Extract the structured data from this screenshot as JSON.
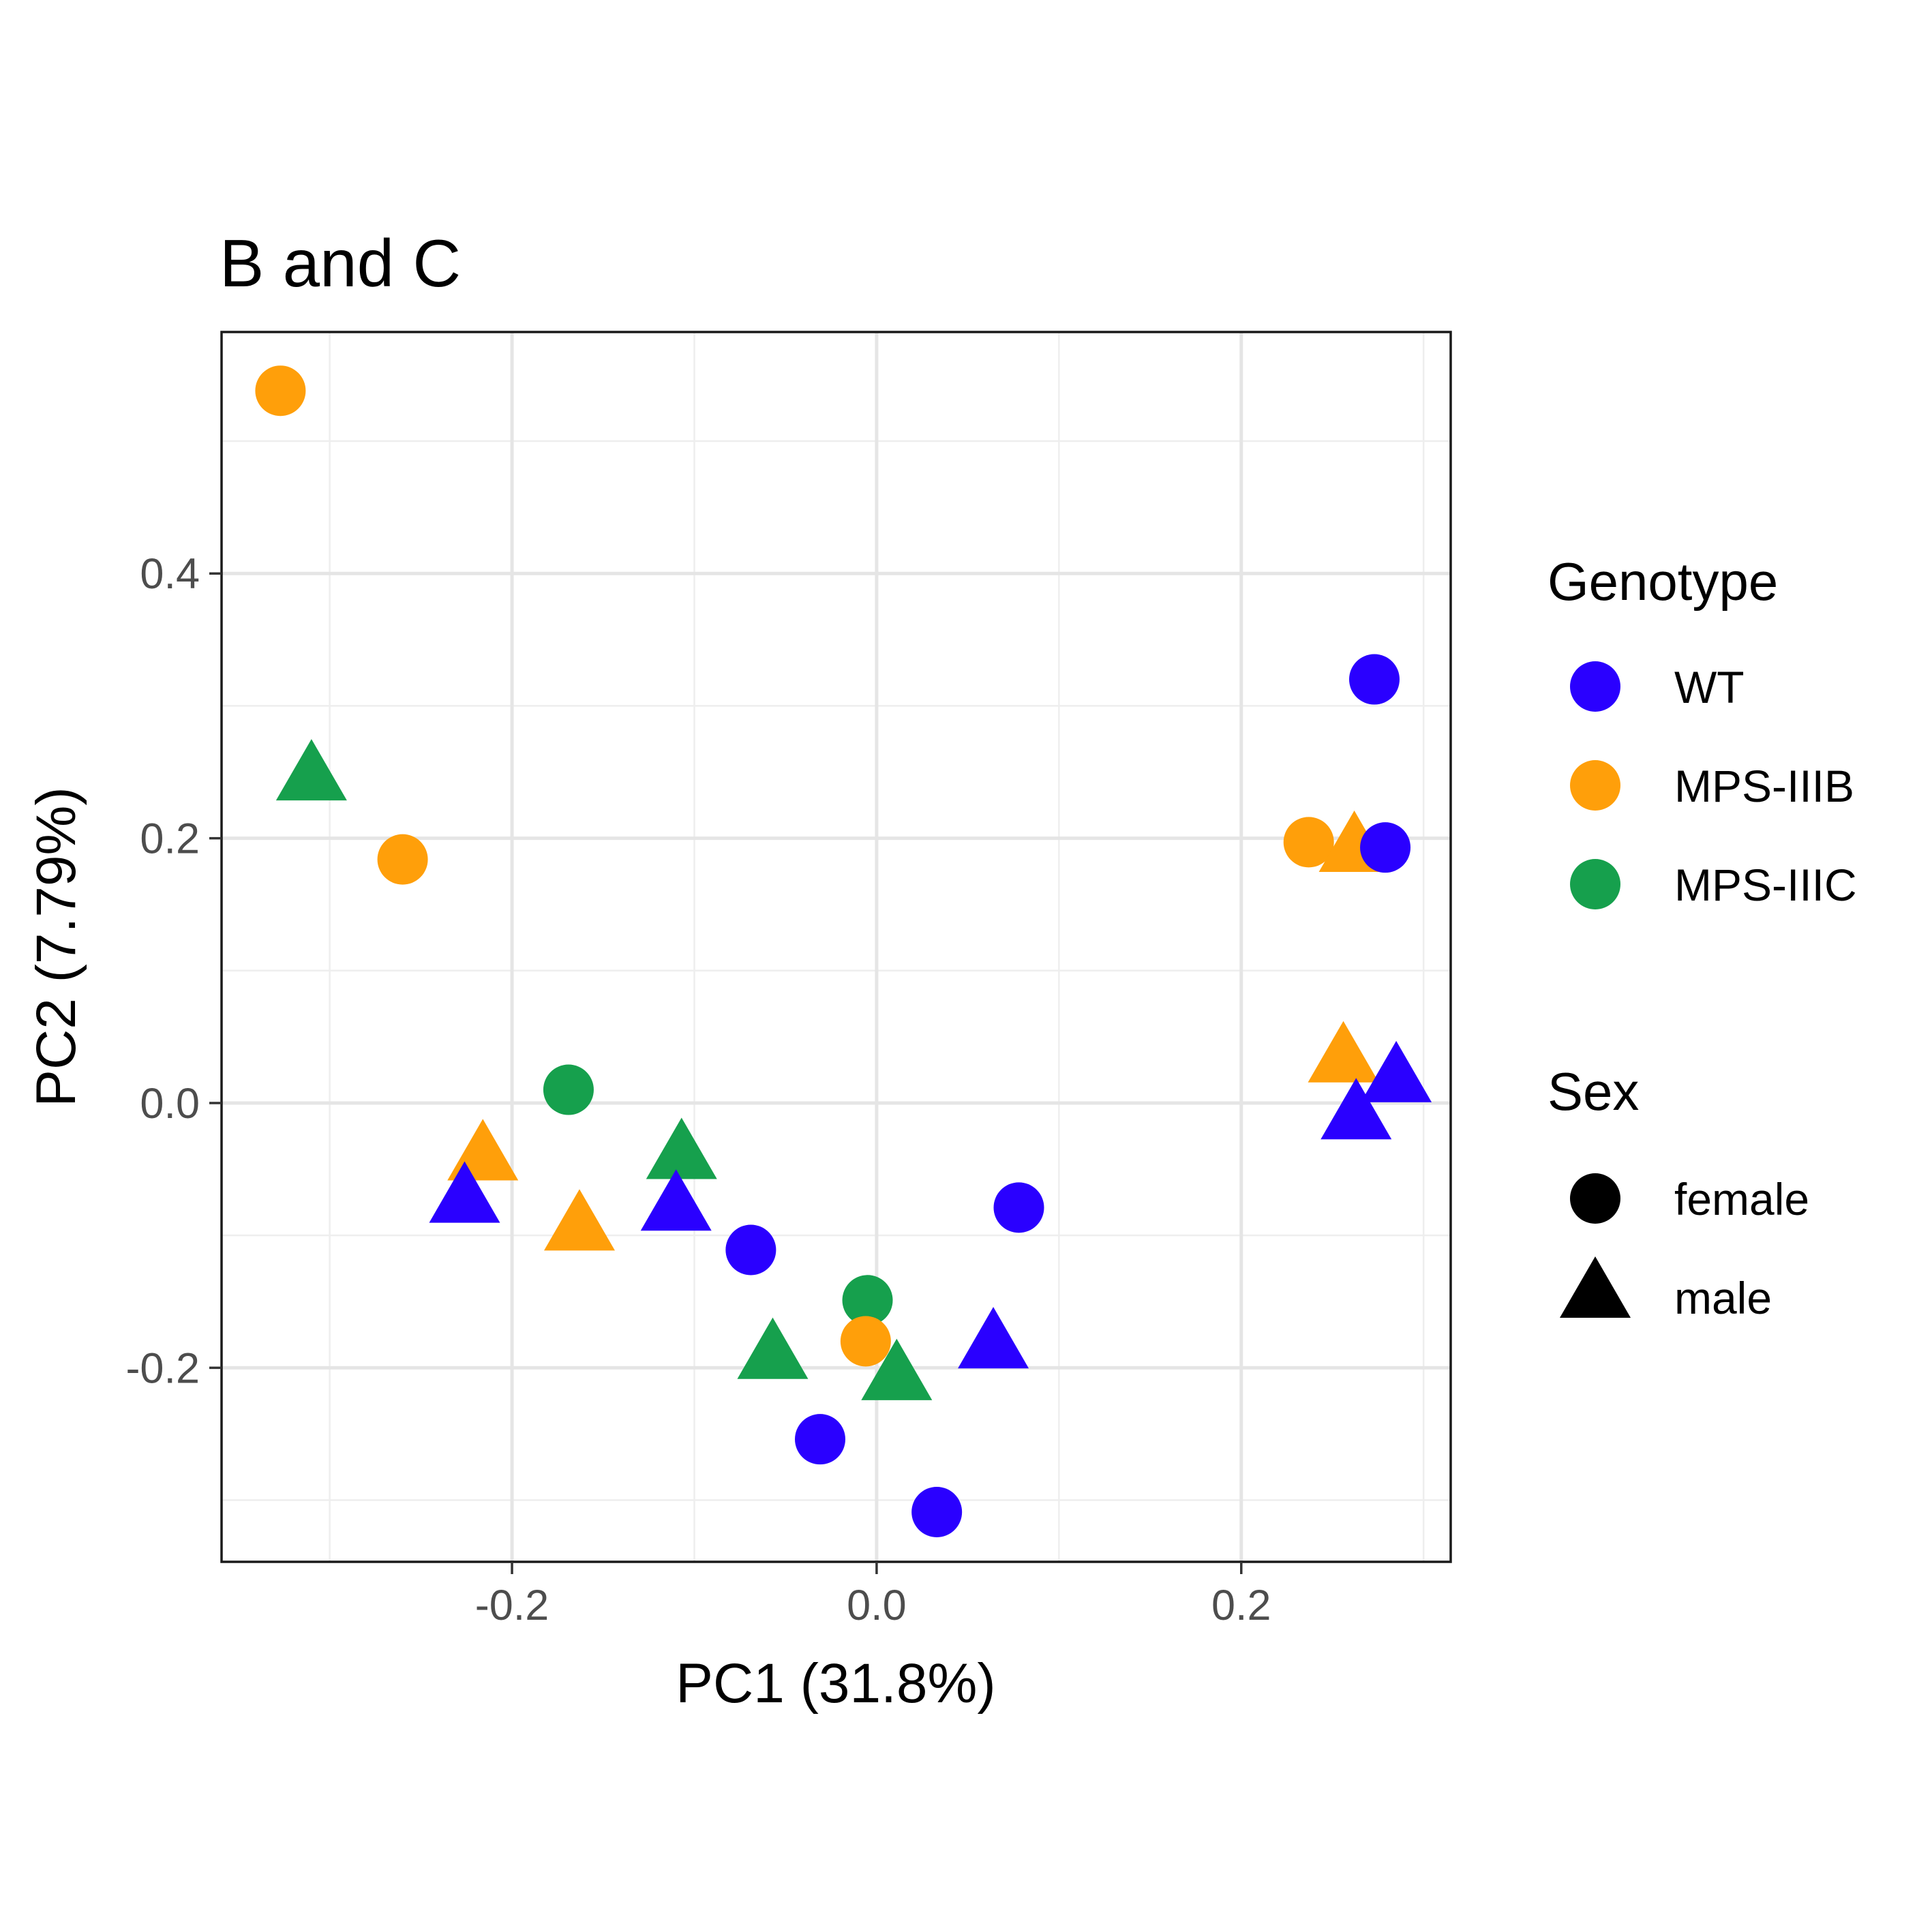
{
  "chart_data": {
    "type": "scatter",
    "title": "B and C",
    "xlabel": "PC1 (31.8%)",
    "ylabel": "PC2 (7.79%)",
    "xlim": [
      -0.35931,
      0.31488
    ],
    "ylim": [
      -0.3466,
      0.5824
    ],
    "x_ticks": [
      -0.2,
      0.0,
      0.2
    ],
    "x_tick_labels": [
      "-0.2",
      "0.0",
      "0.2"
    ],
    "y_ticks": [
      -0.2,
      0.0,
      0.2,
      0.4
    ],
    "y_tick_labels": [
      "-0.2",
      "0.0",
      "0.2",
      "0.4"
    ],
    "grid": true,
    "colors": {
      "WT": "#2a00ff",
      "MPS-IIIB": "#ff9f0a",
      "MPS-IIIC": "#16a04d"
    },
    "legend": {
      "placement": "right",
      "genotype_title": "Genotype",
      "genotype_items": [
        {
          "label": "WT",
          "color": "#2a00ff"
        },
        {
          "label": "MPS-IIIB",
          "color": "#ff9f0a"
        },
        {
          "label": "MPS-IIIC",
          "color": "#16a04d"
        }
      ],
      "sex_title": "Sex",
      "sex_items": [
        {
          "label": "female",
          "shape": "circle"
        },
        {
          "label": "male",
          "shape": "triangle"
        }
      ]
    },
    "points": [
      {
        "x": -0.327,
        "y": 0.538,
        "genotype": "MPS-IIIB",
        "sex": "female"
      },
      {
        "x": -0.31,
        "y": 0.244,
        "genotype": "MPS-IIIC",
        "sex": "male"
      },
      {
        "x": -0.26,
        "y": 0.184,
        "genotype": "MPS-IIIB",
        "sex": "female"
      },
      {
        "x": -0.169,
        "y": 0.01,
        "genotype": "MPS-IIIC",
        "sex": "female"
      },
      {
        "x": -0.216,
        "y": -0.043,
        "genotype": "MPS-IIIB",
        "sex": "male"
      },
      {
        "x": -0.226,
        "y": -0.075,
        "genotype": "WT",
        "sex": "male"
      },
      {
        "x": -0.163,
        "y": -0.096,
        "genotype": "MPS-IIIB",
        "sex": "male"
      },
      {
        "x": -0.107,
        "y": -0.042,
        "genotype": "MPS-IIIC",
        "sex": "male"
      },
      {
        "x": -0.11,
        "y": -0.081,
        "genotype": "WT",
        "sex": "male"
      },
      {
        "x": -0.069,
        "y": -0.111,
        "genotype": "WT",
        "sex": "female"
      },
      {
        "x": -0.057,
        "y": -0.193,
        "genotype": "MPS-IIIC",
        "sex": "male"
      },
      {
        "x": -0.005,
        "y": -0.149,
        "genotype": "MPS-IIIC",
        "sex": "female"
      },
      {
        "x": -0.006,
        "y": -0.18,
        "genotype": "MPS-IIIB",
        "sex": "female"
      },
      {
        "x": 0.011,
        "y": -0.209,
        "genotype": "MPS-IIIC",
        "sex": "male"
      },
      {
        "x": -0.031,
        "y": -0.254,
        "genotype": "WT",
        "sex": "female"
      },
      {
        "x": 0.033,
        "y": -0.309,
        "genotype": "WT",
        "sex": "female"
      },
      {
        "x": 0.064,
        "y": -0.185,
        "genotype": "WT",
        "sex": "male"
      },
      {
        "x": 0.078,
        "y": -0.079,
        "genotype": "WT",
        "sex": "female"
      },
      {
        "x": 0.273,
        "y": 0.32,
        "genotype": "WT",
        "sex": "female"
      },
      {
        "x": 0.237,
        "y": 0.197,
        "genotype": "MPS-IIIB",
        "sex": "female"
      },
      {
        "x": 0.262,
        "y": 0.19,
        "genotype": "MPS-IIIB",
        "sex": "male"
      },
      {
        "x": 0.279,
        "y": 0.193,
        "genotype": "WT",
        "sex": "female"
      },
      {
        "x": 0.256,
        "y": 0.031,
        "genotype": "MPS-IIIB",
        "sex": "male"
      },
      {
        "x": 0.285,
        "y": 0.016,
        "genotype": "WT",
        "sex": "male"
      },
      {
        "x": 0.263,
        "y": -0.012,
        "genotype": "WT",
        "sex": "male"
      }
    ]
  }
}
